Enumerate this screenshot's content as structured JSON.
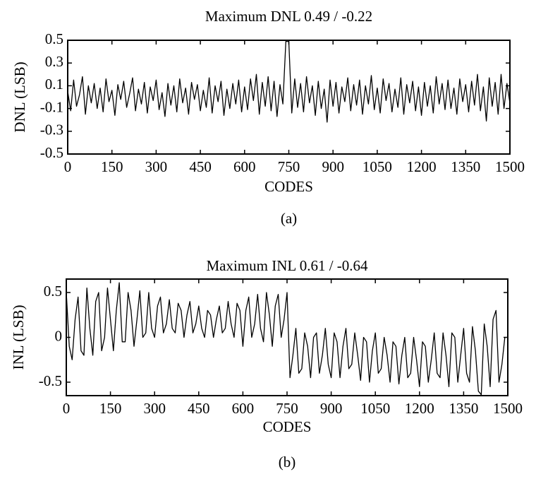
{
  "chart_data": [
    {
      "type": "line",
      "title": "Maximum DNL 0.49 / -0.22",
      "xlabel": "CODES",
      "ylabel": "DNL (LSB)",
      "caption": "(a)",
      "color": "#000000",
      "x": [
        0,
        10,
        20,
        30,
        40,
        50,
        60,
        70,
        80,
        90,
        100,
        110,
        120,
        130,
        140,
        150,
        160,
        170,
        180,
        190,
        200,
        210,
        220,
        230,
        240,
        250,
        260,
        270,
        280,
        290,
        300,
        310,
        320,
        330,
        340,
        350,
        360,
        370,
        380,
        390,
        400,
        410,
        420,
        430,
        440,
        450,
        460,
        470,
        480,
        490,
        500,
        510,
        520,
        530,
        540,
        550,
        560,
        570,
        580,
        590,
        600,
        610,
        620,
        630,
        640,
        650,
        660,
        670,
        680,
        690,
        700,
        710,
        720,
        730,
        740,
        750,
        760,
        770,
        780,
        790,
        800,
        810,
        820,
        830,
        840,
        850,
        860,
        870,
        880,
        890,
        900,
        910,
        920,
        930,
        940,
        950,
        960,
        970,
        980,
        990,
        1000,
        1010,
        1020,
        1030,
        1040,
        1050,
        1060,
        1070,
        1080,
        1090,
        1100,
        1110,
        1120,
        1130,
        1140,
        1150,
        1160,
        1170,
        1180,
        1190,
        1200,
        1210,
        1220,
        1230,
        1240,
        1250,
        1260,
        1270,
        1280,
        1290,
        1300,
        1310,
        1320,
        1330,
        1340,
        1350,
        1360,
        1370,
        1380,
        1390,
        1400,
        1410,
        1420,
        1430,
        1440,
        1450,
        1460,
        1470,
        1480,
        1490,
        1500
      ],
      "values": [
        0.05,
        -0.12,
        0.15,
        -0.08,
        0.02,
        0.18,
        -0.15,
        0.1,
        -0.05,
        0.12,
        -0.1,
        0.08,
        -0.13,
        0.16,
        -0.04,
        0.06,
        -0.16,
        0.11,
        -0.02,
        0.14,
        -0.09,
        0.03,
        0.17,
        -0.12,
        0.07,
        -0.06,
        0.13,
        -0.14,
        0.09,
        -0.03,
        0.15,
        -0.11,
        0.04,
        -0.17,
        0.12,
        -0.07,
        0.1,
        -0.13,
        0.16,
        -0.05,
        0.08,
        -0.15,
        0.13,
        -0.02,
        0.11,
        -0.12,
        0.06,
        -0.09,
        0.17,
        -0.14,
        0.1,
        -0.04,
        0.14,
        -0.16,
        0.07,
        -0.1,
        0.12,
        -0.06,
        0.15,
        -0.13,
        0.09,
        -0.11,
        0.16,
        -0.03,
        0.2,
        -0.15,
        0.13,
        -0.08,
        0.18,
        -0.12,
        0.14,
        -0.17,
        0.11,
        -0.06,
        0.49,
        0.49,
        -0.14,
        0.16,
        -0.09,
        0.12,
        -0.13,
        0.18,
        -0.05,
        0.1,
        -0.16,
        0.14,
        -0.1,
        0.07,
        -0.22,
        0.15,
        -0.08,
        0.13,
        -0.14,
        0.09,
        -0.04,
        0.17,
        -0.12,
        0.11,
        -0.07,
        0.15,
        -0.15,
        0.1,
        -0.06,
        0.19,
        -0.11,
        0.08,
        -0.14,
        0.16,
        -0.03,
        0.12,
        -0.13,
        0.07,
        -0.09,
        0.17,
        -0.15,
        0.11,
        -0.05,
        0.14,
        -0.12,
        0.09,
        -0.16,
        0.13,
        -0.08,
        0.1,
        -0.14,
        0.18,
        -0.06,
        0.12,
        -0.11,
        0.15,
        -0.1,
        0.08,
        -0.15,
        0.16,
        -0.04,
        0.11,
        -0.13,
        0.14,
        -0.07,
        0.2,
        -0.12,
        0.09,
        -0.21,
        0.17,
        -0.08,
        0.13,
        -0.15,
        0.2,
        -0.1,
        0.12,
        -0.05
      ],
      "xlim": [
        0,
        1500
      ],
      "xticks": [
        0,
        150,
        300,
        450,
        600,
        750,
        900,
        1050,
        1200,
        1350,
        1500
      ],
      "ylim": [
        -0.5,
        0.5
      ],
      "yticks": [
        -0.5,
        -0.3,
        -0.1,
        0.1,
        0.3,
        0.5
      ]
    },
    {
      "type": "line",
      "title": "Maximum INL 0.61 / -0.64",
      "xlabel": "CODES",
      "ylabel": "INL (LSB)",
      "caption": "(b)",
      "color": "#000000",
      "x": [
        0,
        10,
        20,
        30,
        40,
        50,
        60,
        70,
        80,
        90,
        100,
        110,
        120,
        130,
        140,
        150,
        160,
        170,
        180,
        190,
        200,
        210,
        220,
        230,
        240,
        250,
        260,
        270,
        280,
        290,
        300,
        310,
        320,
        330,
        340,
        350,
        360,
        370,
        380,
        390,
        400,
        410,
        420,
        430,
        440,
        450,
        460,
        470,
        480,
        490,
        500,
        510,
        520,
        530,
        540,
        550,
        560,
        570,
        580,
        590,
        600,
        610,
        620,
        630,
        640,
        650,
        660,
        670,
        680,
        690,
        700,
        710,
        720,
        730,
        740,
        750,
        760,
        770,
        780,
        790,
        800,
        810,
        820,
        830,
        840,
        850,
        860,
        870,
        880,
        890,
        900,
        910,
        920,
        930,
        940,
        950,
        960,
        970,
        980,
        990,
        1000,
        1010,
        1020,
        1030,
        1040,
        1050,
        1060,
        1070,
        1080,
        1090,
        1100,
        1110,
        1120,
        1130,
        1140,
        1150,
        1160,
        1170,
        1180,
        1190,
        1200,
        1210,
        1220,
        1230,
        1240,
        1250,
        1260,
        1270,
        1280,
        1290,
        1300,
        1310,
        1320,
        1330,
        1340,
        1350,
        1360,
        1370,
        1380,
        1390,
        1400,
        1410,
        1420,
        1430,
        1440,
        1450,
        1460,
        1470,
        1480,
        1490
      ],
      "values": [
        0.5,
        -0.1,
        -0.25,
        0.2,
        0.45,
        -0.15,
        -0.2,
        0.55,
        0.1,
        -0.2,
        0.4,
        0.5,
        -0.15,
        0.0,
        0.55,
        0.2,
        -0.15,
        0.3,
        0.61,
        -0.05,
        -0.05,
        0.5,
        0.3,
        -0.1,
        0.2,
        0.52,
        0.0,
        0.05,
        0.5,
        0.1,
        0.0,
        0.35,
        0.45,
        0.05,
        0.15,
        0.42,
        0.1,
        0.05,
        0.38,
        0.3,
        0.0,
        0.25,
        0.4,
        0.05,
        0.15,
        0.35,
        0.1,
        0.0,
        0.3,
        0.25,
        0.0,
        0.2,
        0.35,
        0.05,
        0.1,
        0.4,
        0.15,
        0.0,
        0.38,
        0.3,
        -0.1,
        0.3,
        0.45,
        0.0,
        0.15,
        0.48,
        0.1,
        -0.05,
        0.5,
        0.25,
        -0.1,
        0.35,
        0.48,
        0.0,
        0.2,
        0.5,
        -0.45,
        -0.2,
        0.1,
        -0.4,
        -0.35,
        0.05,
        -0.1,
        -0.45,
        0.0,
        0.05,
        -0.4,
        -0.2,
        0.1,
        -0.3,
        -0.45,
        0.05,
        -0.05,
        -0.45,
        -0.1,
        0.1,
        -0.35,
        -0.3,
        0.05,
        -0.2,
        -0.48,
        0.0,
        -0.05,
        -0.5,
        -0.15,
        0.05,
        -0.4,
        -0.35,
        0.0,
        -0.2,
        -0.5,
        -0.05,
        -0.1,
        -0.52,
        -0.2,
        0.0,
        -0.45,
        -0.4,
        0.0,
        -0.25,
        -0.55,
        -0.05,
        -0.1,
        -0.5,
        -0.25,
        0.05,
        -0.4,
        -0.45,
        0.05,
        -0.2,
        -0.55,
        0.05,
        0.0,
        -0.5,
        -0.2,
        0.1,
        -0.4,
        -0.5,
        0.12,
        -0.15,
        -0.6,
        -0.64,
        0.15,
        -0.1,
        -0.55,
        0.2,
        0.3,
        -0.5,
        -0.3,
        0.0
      ],
      "xlim": [
        0,
        1500
      ],
      "xticks": [
        0,
        150,
        300,
        450,
        600,
        750,
        900,
        1050,
        1200,
        1350,
        1500
      ],
      "ylim": [
        -0.65,
        0.65
      ],
      "yticks": [
        -0.5,
        0,
        0.5
      ]
    }
  ]
}
